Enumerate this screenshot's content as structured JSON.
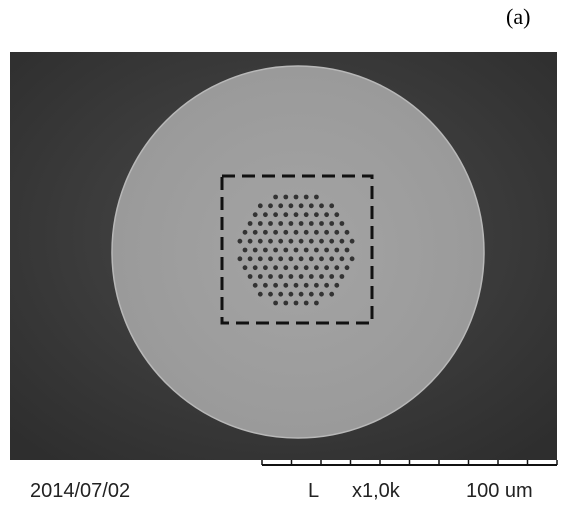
{
  "panel_label": "(a)",
  "footer": {
    "date": "2014/07/02",
    "mode": "L",
    "magnification": "x1,0k",
    "scale": "100 um"
  }
}
